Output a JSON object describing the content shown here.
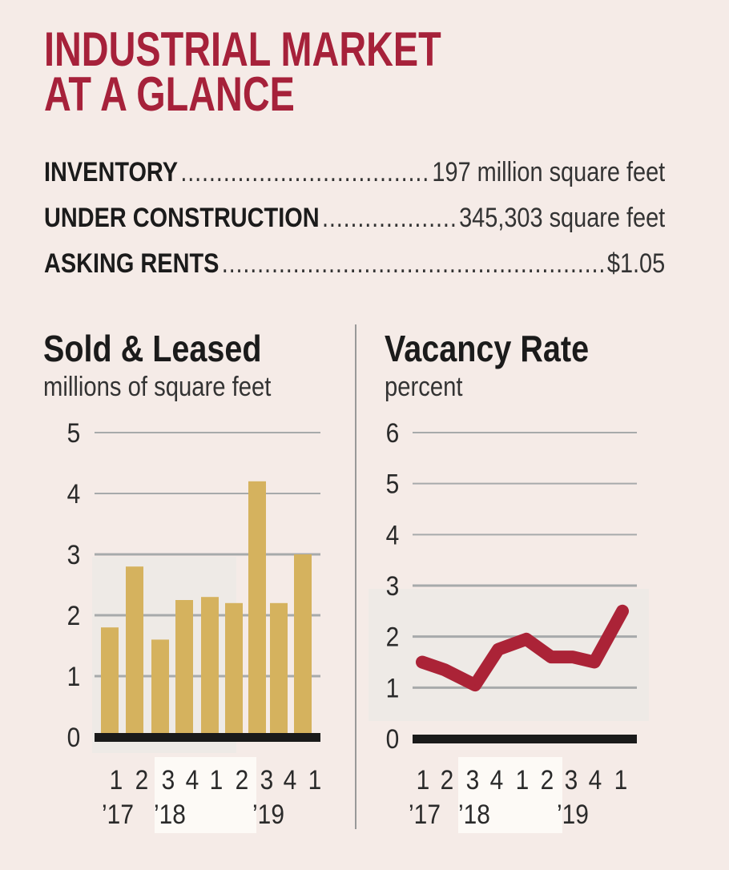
{
  "header": {
    "title_line1": "INDUSTRIAL MARKET",
    "title_line2": "AT A GLANCE"
  },
  "stats": [
    {
      "label": "INVENTORY",
      "value": "197 million square feet"
    },
    {
      "label": "UNDER CONSTRUCTION",
      "value": "345,303 square feet"
    },
    {
      "label": "ASKING RENTS",
      "value": "$1.05"
    }
  ],
  "colors": {
    "background": "#f5ebe7",
    "title": "#a6213a",
    "bar": "#d5b25e",
    "line": "#ab2337",
    "axis": "#1a1a1a",
    "grid": "#a7aaab"
  },
  "chart_data": [
    {
      "type": "bar",
      "title": "Sold & Leased",
      "subtitle": "millions of square feet",
      "categories": [
        "1",
        "2",
        "3",
        "4",
        "1",
        "2",
        "3",
        "4",
        "1"
      ],
      "year_labels": [
        {
          "label": "’17",
          "index": 0
        },
        {
          "label": "’18",
          "index": 2
        },
        {
          "label": "’19",
          "index": 6
        }
      ],
      "values": [
        1.8,
        2.8,
        1.6,
        2.25,
        2.3,
        2.2,
        4.2,
        2.2,
        3.0
      ],
      "yticks": [
        "0",
        "1",
        "2",
        "3",
        "4",
        "5"
      ],
      "ylim": [
        0,
        5
      ],
      "grid": true
    },
    {
      "type": "line",
      "title": "Vacancy Rate",
      "subtitle": "percent",
      "categories": [
        "1",
        "2",
        "3",
        "4",
        "1",
        "2",
        "3",
        "4",
        "1"
      ],
      "year_labels": [
        {
          "label": "’17",
          "index": 0
        },
        {
          "label": "’18",
          "index": 2
        },
        {
          "label": "’19",
          "index": 6
        }
      ],
      "values": [
        1.5,
        1.35,
        1.05,
        1.75,
        1.95,
        1.6,
        1.6,
        1.5,
        2.5
      ],
      "yticks": [
        "0",
        "1",
        "2",
        "3",
        "4",
        "5",
        "6"
      ],
      "ylim": [
        0,
        6
      ],
      "grid": true
    }
  ]
}
